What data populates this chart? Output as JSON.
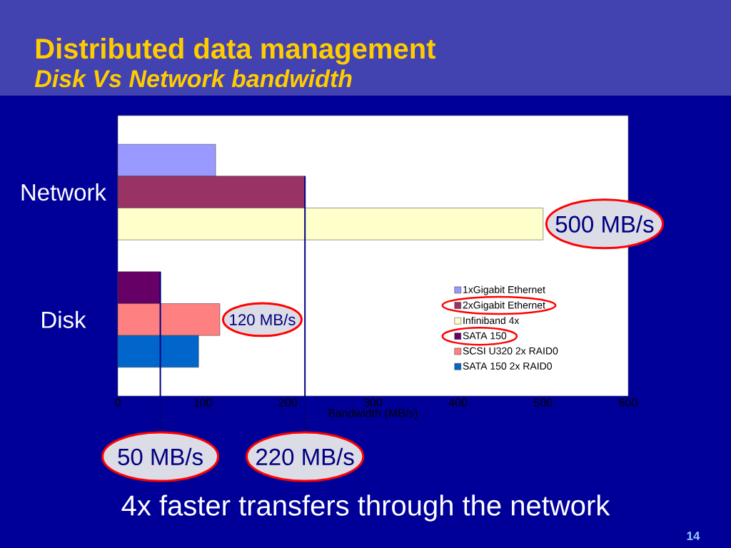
{
  "chart_data": {
    "type": "bar",
    "orientation": "horizontal",
    "title": "Distributed data management",
    "subtitle": "Disk Vs Network bandwidth",
    "xlabel": "Bandwidth (MB/s)",
    "categories": [
      "Network",
      "Disk"
    ],
    "series": [
      {
        "name": "1xGigabit Ethernet",
        "color": "#9999ff",
        "values": [
          115,
          null
        ]
      },
      {
        "name": "2xGigabit Ethernet",
        "color": "#993366",
        "values": [
          220,
          null
        ]
      },
      {
        "name": "Infiniband 4x",
        "color": "#ffffcc",
        "values": [
          500,
          null
        ],
        "value_labels": [
          "500 MB/s",
          null
        ]
      },
      {
        "name": "SATA 150",
        "color": "#660066",
        "values": [
          null,
          50
        ]
      },
      {
        "name": "SCSI U320 2x RAID0",
        "color": "#ff8080",
        "values": [
          null,
          120
        ],
        "value_labels": [
          null,
          "120 MB/s"
        ]
      },
      {
        "name": "SATA 150 2x RAID0",
        "color": "#0066cc",
        "values": [
          null,
          95
        ]
      }
    ],
    "xlim": [
      0,
      600
    ],
    "xticks": [
      0,
      100,
      200,
      300,
      400,
      500,
      600
    ],
    "legend": "bottom right",
    "ref_lines": [
      {
        "axis": "x",
        "value": 50,
        "label": "50 MB/s",
        "color": "#000080"
      },
      {
        "axis": "x",
        "value": 220,
        "label": "220 MB/s",
        "color": "#000080"
      }
    ],
    "annotations": [
      "4x faster transfers through the network",
      "14"
    ]
  }
}
